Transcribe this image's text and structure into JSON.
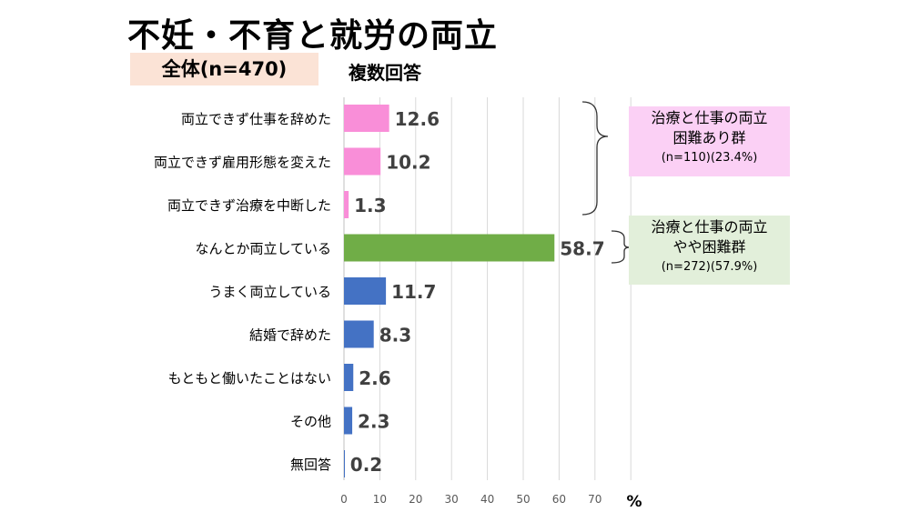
{
  "title": "不妊・不育と就労の両立",
  "subtitle": "全体(n=470)",
  "note": "複数回答",
  "groups": [
    {
      "line1": "治療と仕事の両立",
      "line2": "困難あり群",
      "line3": "(n=110)(23.4%)",
      "color": "#fbd0f5"
    },
    {
      "line1": "治療と仕事の両立",
      "line2": "やや困難群",
      "line3": "(n=272)(57.9%)",
      "color": "#e2efda"
    }
  ],
  "chart_data": {
    "type": "bar",
    "orientation": "horizontal",
    "categories": [
      "両立できず仕事を辞めた",
      "両立できず雇用形態を変えた",
      "両立できず治療を中断した",
      "なんとか両立している",
      "うまく両立している",
      "結婚で辞めた",
      "もともと働いたことはない",
      "その他",
      "無回答"
    ],
    "values": [
      12.6,
      10.2,
      1.3,
      58.7,
      11.7,
      8.3,
      2.6,
      2.3,
      0.2
    ],
    "colors": [
      "#f98ed8",
      "#f98ed8",
      "#f98ed8",
      "#70ad47",
      "#4472c4",
      "#4472c4",
      "#4472c4",
      "#4472c4",
      "#4472c4"
    ],
    "xticks": [
      0,
      10,
      20,
      30,
      40,
      50,
      60,
      70
    ],
    "xlim": [
      0,
      80
    ],
    "xlabel": "%",
    "grid": true
  }
}
